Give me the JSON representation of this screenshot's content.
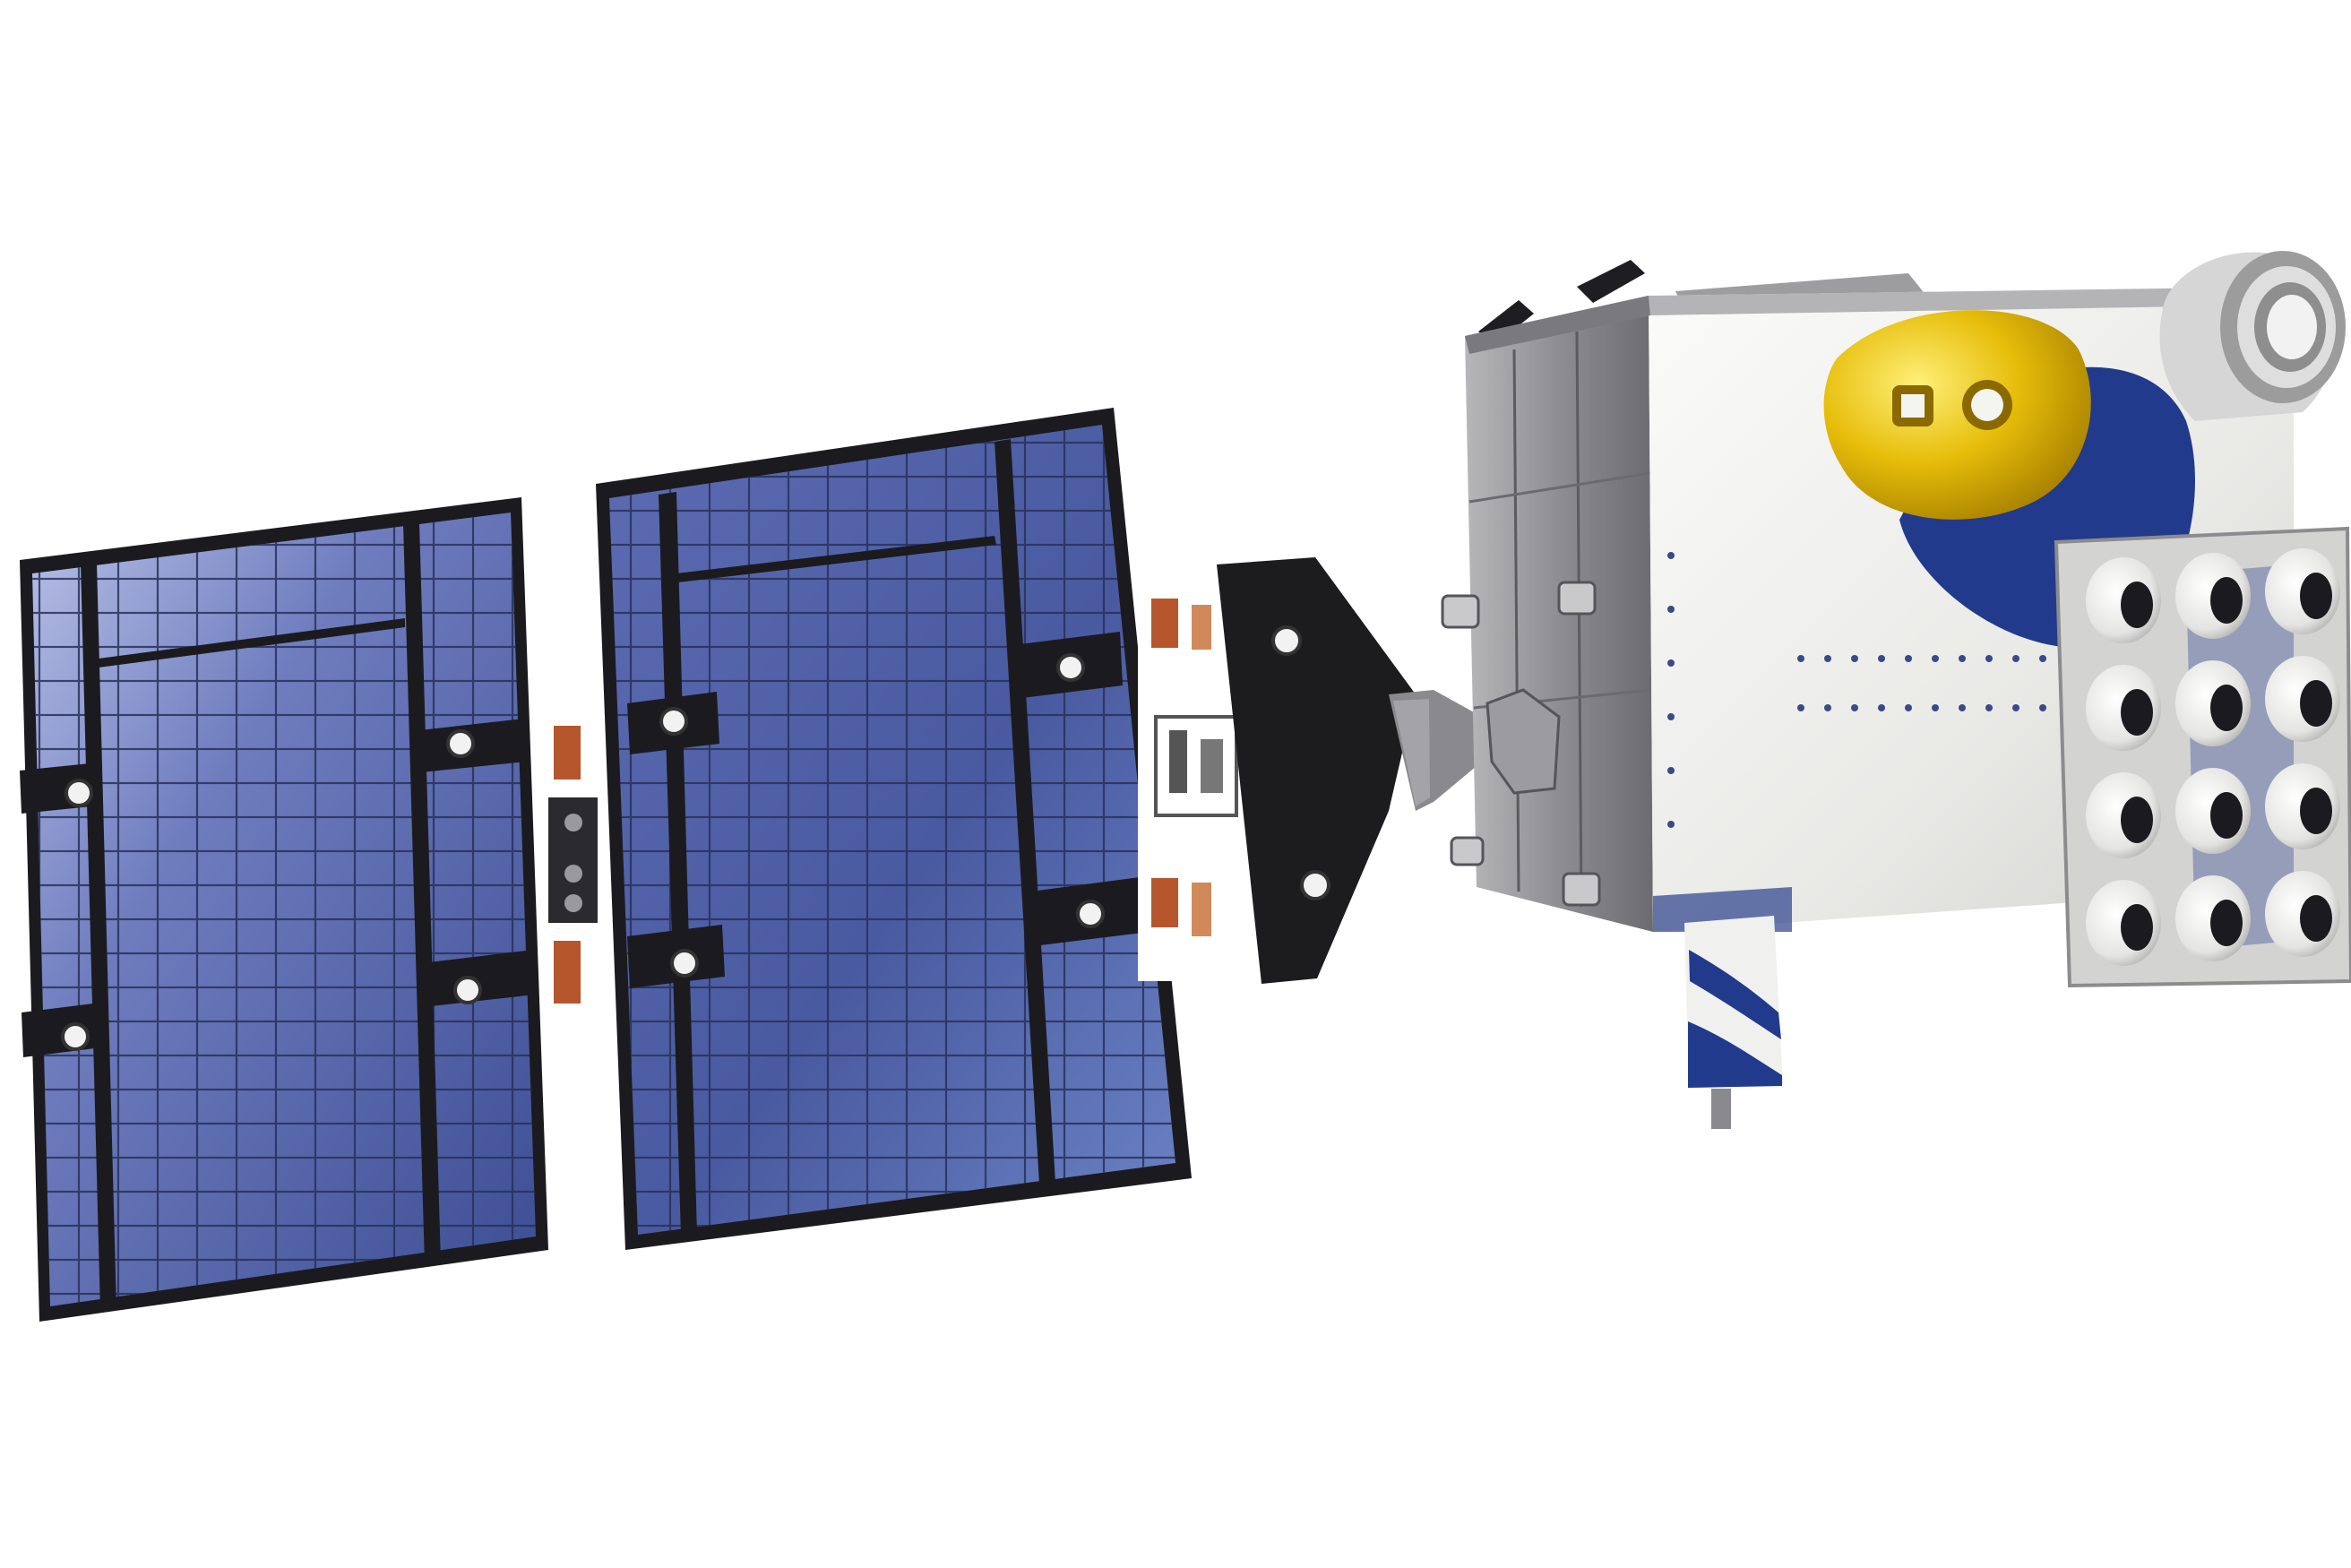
{
  "scene": {
    "subject": "satellite-icon",
    "background_color": "#ffffff",
    "colors": {
      "solar_cell": "#4a5a9e",
      "solar_cell_highlight": "#9aa6d8",
      "panel_frame": "#1b1b1f",
      "hinge_copper": "#b5562c",
      "bus_foil": "#eeeeec",
      "bus_shadow_blue": "#223a8c",
      "gold_dish": "#e0b800",
      "thruster_white": "#f2f2f0",
      "metal_grey": "#8e8e92"
    }
  }
}
